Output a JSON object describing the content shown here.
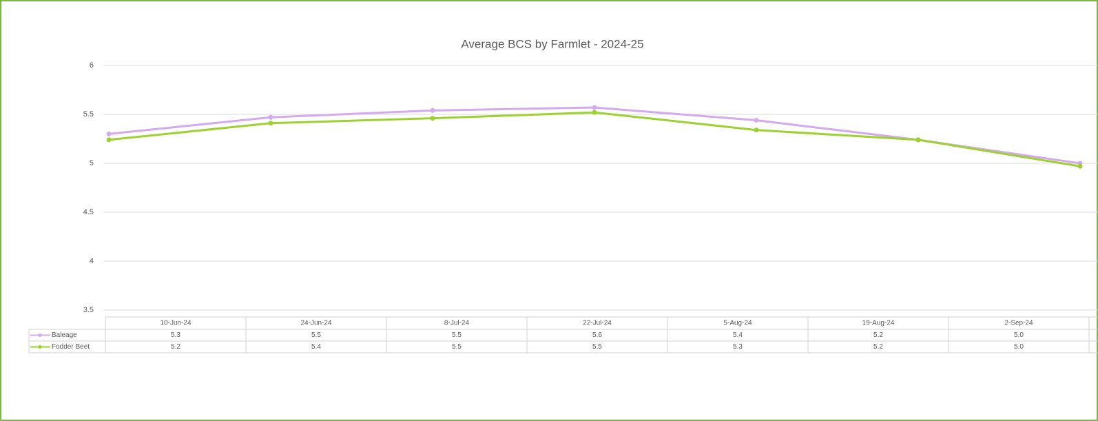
{
  "chart_data": {
    "type": "line",
    "title": "Average BCS by Farmlet - 2024-25",
    "categories": [
      "10-Jun-24",
      "24-Jun-24",
      "8-Jul-24",
      "22-Jul-24",
      "5-Aug-24",
      "19-Aug-24",
      "2-Sep-24"
    ],
    "series": [
      {
        "name": "Baleage",
        "color": "#d4a9ef",
        "values": [
          5.3,
          5.47,
          5.54,
          5.57,
          5.44,
          5.24,
          5.0
        ],
        "value_labels": [
          "5.3",
          "5.5",
          "5.5",
          "5.6",
          "5.4",
          "5.2",
          "5.0"
        ]
      },
      {
        "name": "Fodder Beet",
        "color": "#9dd12f",
        "values": [
          5.24,
          5.41,
          5.46,
          5.52,
          5.34,
          5.24,
          4.97
        ],
        "value_labels": [
          "5.2",
          "5.4",
          "5.5",
          "5.5",
          "5.3",
          "5.2",
          "5.0"
        ]
      }
    ],
    "ylim": [
      3.5,
      6
    ],
    "yticks": [
      3.5,
      4,
      4.5,
      5,
      5.5,
      6
    ],
    "grid": true,
    "data_table": true
  }
}
